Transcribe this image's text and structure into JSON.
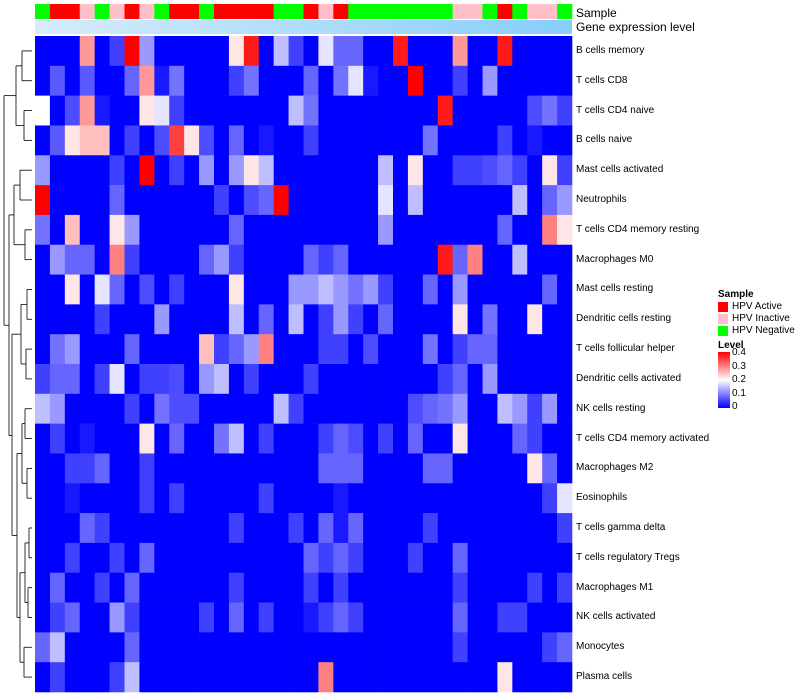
{
  "chart_data": {
    "type": "heatmap",
    "annotation_rows": [
      "Sample",
      "Gene expression level"
    ],
    "sample_colors": {
      "HPV Active": "#ff0000",
      "HPV Inactive": "#ffc0cb",
      "HPV Negative": "#00ff00"
    },
    "gene_expression_color": "#87cefa",
    "sample_annotation": [
      "N",
      "A",
      "A",
      "I",
      "N",
      "I",
      "A",
      "I",
      "N",
      "A",
      "A",
      "N",
      "A",
      "A",
      "A",
      "A",
      "N",
      "N",
      "A",
      "I",
      "A",
      "N",
      "N",
      "N",
      "N",
      "N",
      "N",
      "N",
      "I",
      "I",
      "N",
      "A",
      "N",
      "I",
      "I",
      "N"
    ],
    "rows": [
      "B cells memory",
      "T cells CD8",
      "T cells CD4 naive",
      "B cells naive",
      "Mast cells activated",
      "Neutrophils",
      "T cells CD4 memory resting",
      "Macrophages M0",
      "Mast cells resting",
      "Dendritic cells resting",
      "T cells follicular helper",
      "Dendritic cells activated",
      "NK cells resting",
      "T cells CD4 memory activated",
      "Macrophages M2",
      "Eosinophils",
      "T cells gamma delta",
      "T cells regulatory  Tregs",
      "Macrophages M1",
      "NK cells activated",
      "Monocytes",
      "Plasma cells"
    ],
    "values": [
      [
        0.0,
        0.0,
        0.0,
        0.28,
        0.0,
        0.05,
        0.4,
        0.12,
        0.0,
        0.0,
        0.0,
        0.0,
        0.0,
        0.22,
        0.38,
        0.0,
        0.15,
        0.05,
        0.0,
        0.18,
        0.08,
        0.08,
        0.0,
        0.0,
        0.38,
        0.0,
        0.0,
        0.0,
        0.28,
        0.0,
        0.0,
        0.38,
        0.0,
        0.0,
        0.0,
        0.0
      ],
      [
        0.0,
        0.07,
        0.0,
        0.07,
        0.0,
        0.0,
        0.08,
        0.28,
        0.02,
        0.09,
        0.0,
        0.0,
        0.0,
        0.05,
        0.09,
        0.0,
        0.0,
        0.0,
        0.08,
        0.0,
        0.09,
        0.18,
        0.02,
        0.0,
        0.0,
        0.4,
        0.0,
        0.0,
        0.05,
        0.0,
        0.12,
        0.0,
        0.0,
        0.0,
        0.0,
        0.0
      ],
      [
        0.2,
        0.0,
        0.06,
        0.28,
        0.02,
        0.0,
        0.0,
        0.22,
        0.18,
        0.05,
        0.0,
        0.0,
        0.0,
        0.0,
        0.0,
        0.0,
        0.0,
        0.15,
        0.09,
        0.0,
        0.0,
        0.0,
        0.0,
        0.0,
        0.0,
        0.0,
        0.0,
        0.38,
        0.0,
        0.0,
        0.0,
        0.0,
        0.0,
        0.06,
        0.09,
        0.05
      ],
      [
        0.0,
        0.07,
        0.22,
        0.25,
        0.25,
        0.0,
        0.05,
        0.0,
        0.06,
        0.35,
        0.22,
        0.06,
        0.0,
        0.08,
        0.0,
        0.02,
        0.0,
        0.0,
        0.05,
        0.0,
        0.0,
        0.0,
        0.0,
        0.0,
        0.0,
        0.0,
        0.09,
        0.0,
        0.0,
        0.0,
        0.0,
        0.05,
        0.0,
        0.02,
        0.0,
        0.0
      ],
      [
        0.12,
        0.0,
        0.0,
        0.0,
        0.0,
        0.05,
        0.0,
        0.4,
        0.0,
        0.05,
        0.0,
        0.12,
        0.0,
        0.12,
        0.22,
        0.15,
        0.0,
        0.0,
        0.0,
        0.0,
        0.0,
        0.0,
        0.0,
        0.15,
        0.0,
        0.22,
        0.0,
        0.0,
        0.05,
        0.05,
        0.06,
        0.08,
        0.05,
        0.0,
        0.22,
        0.05
      ],
      [
        0.4,
        0.0,
        0.0,
        0.0,
        0.0,
        0.08,
        0.0,
        0.0,
        0.0,
        0.0,
        0.0,
        0.0,
        0.05,
        0.0,
        0.06,
        0.08,
        0.4,
        0.0,
        0.0,
        0.0,
        0.0,
        0.0,
        0.0,
        0.18,
        0.0,
        0.15,
        0.0,
        0.0,
        0.0,
        0.0,
        0.0,
        0.0,
        0.15,
        0.0,
        0.08,
        0.12
      ],
      [
        0.09,
        0.0,
        0.25,
        0.0,
        0.0,
        0.22,
        0.12,
        0.0,
        0.0,
        0.0,
        0.0,
        0.0,
        0.0,
        0.08,
        0.0,
        0.0,
        0.0,
        0.0,
        0.0,
        0.0,
        0.0,
        0.0,
        0.0,
        0.12,
        0.0,
        0.0,
        0.0,
        0.0,
        0.0,
        0.0,
        0.0,
        0.08,
        0.0,
        0.0,
        0.3,
        0.22
      ],
      [
        0.0,
        0.12,
        0.08,
        0.08,
        0.0,
        0.3,
        0.05,
        0.0,
        0.0,
        0.0,
        0.0,
        0.08,
        0.12,
        0.05,
        0.0,
        0.0,
        0.0,
        0.0,
        0.08,
        0.05,
        0.08,
        0.0,
        0.0,
        0.0,
        0.0,
        0.0,
        0.0,
        0.38,
        0.08,
        0.3,
        0.0,
        0.0,
        0.15,
        0.0,
        0.0,
        0.0
      ],
      [
        0.0,
        0.0,
        0.22,
        0.0,
        0.18,
        0.08,
        0.0,
        0.06,
        0.0,
        0.05,
        0.0,
        0.0,
        0.0,
        0.22,
        0.0,
        0.0,
        0.0,
        0.12,
        0.12,
        0.15,
        0.12,
        0.09,
        0.12,
        0.05,
        0.0,
        0.0,
        0.08,
        0.0,
        0.12,
        0.0,
        0.0,
        0.0,
        0.0,
        0.0,
        0.08,
        0.0
      ],
      [
        0.0,
        0.0,
        0.0,
        0.0,
        0.05,
        0.0,
        0.0,
        0.0,
        0.12,
        0.0,
        0.0,
        0.0,
        0.0,
        0.15,
        0.0,
        0.08,
        0.0,
        0.15,
        0.0,
        0.05,
        0.12,
        0.05,
        0.0,
        0.08,
        0.0,
        0.0,
        0.0,
        0.0,
        0.22,
        0.0,
        0.09,
        0.0,
        0.0,
        0.22,
        0.0,
        0.0
      ],
      [
        0.0,
        0.09,
        0.12,
        0.0,
        0.0,
        0.0,
        0.08,
        0.0,
        0.0,
        0.0,
        0.0,
        0.25,
        0.05,
        0.08,
        0.12,
        0.3,
        0.0,
        0.0,
        0.0,
        0.05,
        0.05,
        0.0,
        0.06,
        0.0,
        0.0,
        0.0,
        0.09,
        0.0,
        0.05,
        0.08,
        0.08,
        0.0,
        0.0,
        0.0,
        0.0,
        0.0
      ],
      [
        0.05,
        0.08,
        0.08,
        0.0,
        0.05,
        0.18,
        0.0,
        0.05,
        0.05,
        0.06,
        0.0,
        0.12,
        0.15,
        0.0,
        0.05,
        0.0,
        0.0,
        0.0,
        0.05,
        0.0,
        0.0,
        0.0,
        0.0,
        0.0,
        0.0,
        0.0,
        0.0,
        0.05,
        0.08,
        0.0,
        0.12,
        0.0,
        0.0,
        0.0,
        0.0,
        0.0
      ],
      [
        0.15,
        0.12,
        0.0,
        0.0,
        0.0,
        0.0,
        0.05,
        0.0,
        0.09,
        0.06,
        0.06,
        0.0,
        0.0,
        0.0,
        0.0,
        0.0,
        0.15,
        0.05,
        0.0,
        0.0,
        0.0,
        0.0,
        0.0,
        0.0,
        0.0,
        0.06,
        0.08,
        0.09,
        0.12,
        0.0,
        0.0,
        0.15,
        0.12,
        0.05,
        0.12,
        0.0
      ],
      [
        0.0,
        0.05,
        0.0,
        0.02,
        0.0,
        0.0,
        0.0,
        0.22,
        0.0,
        0.08,
        0.0,
        0.0,
        0.09,
        0.15,
        0.0,
        0.05,
        0.0,
        0.0,
        0.0,
        0.05,
        0.08,
        0.06,
        0.0,
        0.05,
        0.0,
        0.08,
        0.0,
        0.0,
        0.22,
        0.0,
        0.0,
        0.0,
        0.08,
        0.05,
        0.0,
        0.0
      ],
      [
        0.0,
        0.0,
        0.05,
        0.05,
        0.08,
        0.0,
        0.0,
        0.05,
        0.0,
        0.0,
        0.0,
        0.0,
        0.0,
        0.0,
        0.0,
        0.0,
        0.0,
        0.0,
        0.0,
        0.08,
        0.08,
        0.08,
        0.0,
        0.0,
        0.0,
        0.0,
        0.08,
        0.08,
        0.0,
        0.0,
        0.0,
        0.0,
        0.0,
        0.22,
        0.08,
        0.0
      ],
      [
        0.0,
        0.0,
        0.02,
        0.0,
        0.0,
        0.0,
        0.0,
        0.05,
        0.0,
        0.05,
        0.0,
        0.0,
        0.0,
        0.0,
        0.0,
        0.05,
        0.0,
        0.0,
        0.0,
        0.0,
        0.02,
        0.0,
        0.0,
        0.0,
        0.0,
        0.0,
        0.0,
        0.0,
        0.0,
        0.0,
        0.0,
        0.0,
        0.0,
        0.0,
        0.05,
        0.18
      ],
      [
        0.0,
        0.0,
        0.0,
        0.08,
        0.05,
        0.0,
        0.0,
        0.0,
        0.0,
        0.0,
        0.0,
        0.0,
        0.0,
        0.05,
        0.0,
        0.0,
        0.0,
        0.05,
        0.0,
        0.08,
        0.02,
        0.08,
        0.0,
        0.0,
        0.0,
        0.0,
        0.05,
        0.0,
        0.0,
        0.0,
        0.0,
        0.0,
        0.0,
        0.0,
        0.0,
        0.05
      ],
      [
        0.0,
        0.0,
        0.05,
        0.0,
        0.0,
        0.05,
        0.0,
        0.08,
        0.0,
        0.0,
        0.0,
        0.0,
        0.0,
        0.0,
        0.0,
        0.0,
        0.0,
        0.0,
        0.08,
        0.05,
        0.08,
        0.05,
        0.0,
        0.0,
        0.0,
        0.05,
        0.0,
        0.0,
        0.08,
        0.0,
        0.0,
        0.0,
        0.0,
        0.0,
        0.0,
        0.0
      ],
      [
        0.0,
        0.08,
        0.0,
        0.0,
        0.05,
        0.0,
        0.08,
        0.0,
        0.0,
        0.0,
        0.0,
        0.0,
        0.0,
        0.05,
        0.0,
        0.0,
        0.0,
        0.0,
        0.05,
        0.0,
        0.05,
        0.0,
        0.0,
        0.0,
        0.0,
        0.0,
        0.0,
        0.0,
        0.05,
        0.0,
        0.0,
        0.0,
        0.0,
        0.05,
        0.0,
        0.05
      ],
      [
        0.0,
        0.05,
        0.08,
        0.0,
        0.0,
        0.12,
        0.05,
        0.0,
        0.0,
        0.0,
        0.0,
        0.05,
        0.0,
        0.08,
        0.0,
        0.05,
        0.0,
        0.0,
        0.02,
        0.05,
        0.08,
        0.05,
        0.0,
        0.0,
        0.0,
        0.0,
        0.0,
        0.0,
        0.08,
        0.0,
        0.0,
        0.05,
        0.05,
        0.0,
        0.0,
        0.0
      ],
      [
        0.08,
        0.15,
        0.0,
        0.0,
        0.0,
        0.0,
        0.08,
        0.0,
        0.0,
        0.0,
        0.0,
        0.0,
        0.0,
        0.0,
        0.0,
        0.0,
        0.0,
        0.0,
        0.0,
        0.0,
        0.0,
        0.0,
        0.0,
        0.0,
        0.0,
        0.0,
        0.0,
        0.0,
        0.05,
        0.0,
        0.0,
        0.0,
        0.0,
        0.0,
        0.05,
        0.08
      ],
      [
        0.0,
        0.05,
        0.0,
        0.0,
        0.0,
        0.05,
        0.15,
        0.0,
        0.0,
        0.0,
        0.0,
        0.0,
        0.0,
        0.0,
        0.0,
        0.0,
        0.0,
        0.0,
        0.0,
        0.3,
        0.0,
        0.0,
        0.0,
        0.0,
        0.0,
        0.0,
        0.0,
        0.0,
        0.0,
        0.0,
        0.0,
        0.22,
        0.0,
        0.0,
        0.0,
        0.0
      ]
    ],
    "color_scale": {
      "min": 0,
      "mid": 0.2,
      "max": 0.4,
      "low_color": "#0000ff",
      "mid_color": "#ffffff",
      "high_color": "#ff0000"
    }
  },
  "legend": {
    "sample_title": "Sample",
    "sample_items": [
      {
        "label": "HPV Active",
        "color": "#ff0000"
      },
      {
        "label": "HPV Inactive",
        "color": "#ffc0cb"
      },
      {
        "label": "HPV Negative",
        "color": "#00ff00"
      }
    ],
    "level_title": "Level",
    "level_ticks": [
      "0.4",
      "0.3",
      "0.2",
      "0.1",
      "0"
    ]
  }
}
